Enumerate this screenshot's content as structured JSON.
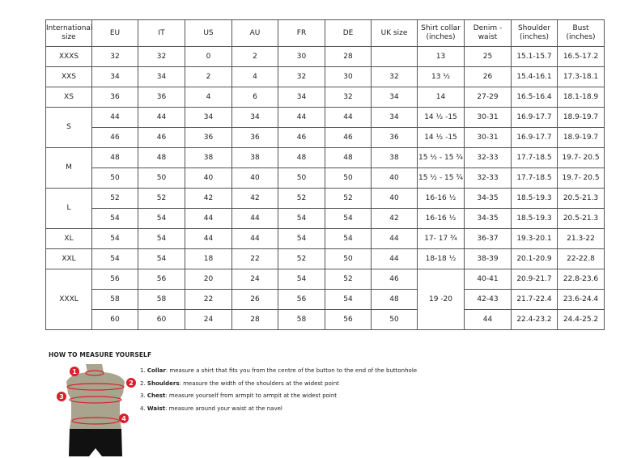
{
  "table": {
    "headers": [
      "International size",
      "EU",
      "IT",
      "US",
      "AU",
      "FR",
      "DE",
      "UK size",
      "Shirt collar (inches)",
      "Denim - waist",
      "Shoulder (inches)",
      "Bust (inches)"
    ],
    "groups": [
      {
        "size": "XXXS",
        "rows": [
          [
            "32",
            "32",
            "0",
            "2",
            "30",
            "28",
            "",
            "13",
            "25",
            "15.1-15.7",
            "16.5-17.2"
          ]
        ]
      },
      {
        "size": "XXS",
        "rows": [
          [
            "34",
            "34",
            "2",
            "4",
            "32",
            "30",
            "32",
            "13 ½",
            "26",
            "15.4-16.1",
            "17.3-18.1"
          ]
        ]
      },
      {
        "size": "XS",
        "rows": [
          [
            "36",
            "36",
            "4",
            "6",
            "34",
            "32",
            "34",
            "14",
            "27-29",
            "16.5-16.4",
            "18.1-18.9"
          ]
        ]
      },
      {
        "size": "S",
        "rows": [
          [
            "44",
            "44",
            "34",
            "34",
            "44",
            "44",
            "34",
            "14 ½ -15",
            "30-31",
            "16.9-17.7",
            "18.9-19.7"
          ],
          [
            "46",
            "46",
            "36",
            "36",
            "46",
            "46",
            "36",
            "14 ½ -15",
            "30-31",
            "16.9-17.7",
            "18.9-19.7"
          ]
        ]
      },
      {
        "size": "M",
        "rows": [
          [
            "48",
            "48",
            "38",
            "38",
            "48",
            "48",
            "38",
            "15 ½ - 15 ¾",
            "32-33",
            "17.7-18.5",
            "19.7- 20.5"
          ],
          [
            "50",
            "50",
            "40",
            "40",
            "50",
            "50",
            "40",
            "15 ½ - 15 ¾",
            "32-33",
            "17.7-18.5",
            "19.7- 20.5"
          ]
        ]
      },
      {
        "size": "L",
        "rows": [
          [
            "52",
            "52",
            "42",
            "42",
            "52",
            "52",
            "40",
            "16-16 ½",
            "34-35",
            "18.5-19.3",
            "20.5-21.3"
          ],
          [
            "54",
            "54",
            "44",
            "44",
            "54",
            "54",
            "42",
            "16-16 ½",
            "34-35",
            "18.5-19.3",
            "20.5-21.3"
          ]
        ]
      },
      {
        "size": "XL",
        "rows": [
          [
            "54",
            "54",
            "44",
            "44",
            "54",
            "54",
            "44",
            "17- 17 ¾",
            "36-37",
            "19.3-20.1",
            "21.3-22"
          ]
        ]
      },
      {
        "size": "XXL",
        "rows": [
          [
            "54",
            "54",
            "18",
            "22",
            "52",
            "50",
            "44",
            "18-18 ½",
            "38-39",
            "20.1-20.9",
            "22-22.8"
          ]
        ]
      },
      {
        "size": "XXXL",
        "rows": [
          [
            "56",
            "56",
            "20",
            "24",
            "54",
            "52",
            "46",
            "19 -20",
            "40-41",
            "20.9-21.7",
            "22.8-23.6"
          ],
          [
            "58",
            "58",
            "22",
            "26",
            "56",
            "54",
            "48",
            null,
            "42-43",
            "21.7-22.4",
            "23.6-24.4"
          ],
          [
            "60",
            "60",
            "24",
            "28",
            "58",
            "56",
            "50",
            null,
            "44",
            "22.4-23.2",
            "24.4-25.2"
          ]
        ]
      }
    ]
  },
  "guide": {
    "title": "HOW TO MEASURE YOURSELF",
    "items": [
      {
        "num": "1.",
        "label": "Collar",
        "text": ": measure a shirt that fits you from the centre of the button to the end of the buttonhole"
      },
      {
        "num": "2.",
        "label": "Shoulders",
        "text": ": measure the width of the shoulders at the widest point"
      },
      {
        "num": "3.",
        "label": "Chest",
        "text": ": measure yourself from armpit to armpit at the widest point"
      },
      {
        "num": "4.",
        "label": "Waist",
        "text": ": measure around your waist at the navel"
      }
    ],
    "markers": [
      "1",
      "2",
      "3",
      "4"
    ],
    "accent": "#d9202c"
  }
}
